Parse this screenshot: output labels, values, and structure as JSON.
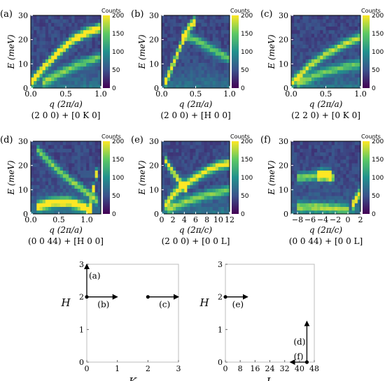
{
  "figure": {
    "colorbar_title": "Counts",
    "colorbar_ticks": [
      "0",
      "50",
      "100",
      "150",
      "200"
    ],
    "colormap": [
      "#440154",
      "#3b528b",
      "#21908d",
      "#5dc863",
      "#fde725"
    ]
  },
  "chart_data": [
    {
      "panel": "(a)",
      "type": "heatmap",
      "ylabel": "E (meV)",
      "xlabel": "q (2π/a)",
      "caption": "(2 0 0) + [0 K 0]",
      "xlim": [
        0,
        1.0
      ],
      "ylim": [
        0,
        30
      ],
      "zlim": [
        0,
        200
      ],
      "xticks": [
        "0.0",
        "0.5",
        "1.0"
      ],
      "yticks": [
        "0",
        "10",
        "20",
        "30"
      ],
      "features": [
        {
          "kind": "dispersion",
          "points": [
            [
              0.0,
              2
            ],
            [
              0.2,
              9
            ],
            [
              0.4,
              15
            ],
            [
              0.6,
              20
            ],
            [
              0.8,
              23
            ],
            [
              1.0,
              25
            ]
          ],
          "intensity": 200
        },
        {
          "kind": "dispersion",
          "points": [
            [
              0.15,
              2
            ],
            [
              0.4,
              6
            ],
            [
              0.7,
              10
            ],
            [
              1.0,
              13
            ]
          ],
          "intensity": 110
        }
      ]
    },
    {
      "panel": "(b)",
      "type": "heatmap",
      "ylabel": "E (meV)",
      "xlabel": "q (2π/a)",
      "caption": "(2 0 0) + [H 0 0]",
      "xlim": [
        0,
        1.0
      ],
      "ylim": [
        0,
        30
      ],
      "zlim": [
        0,
        200
      ],
      "xticks": [
        "0.0",
        "0.5",
        "1.0"
      ],
      "yticks": [
        "0",
        "10",
        "20",
        "30"
      ],
      "features": [
        {
          "kind": "dispersion",
          "points": [
            [
              0.05,
              2
            ],
            [
              0.2,
              12
            ],
            [
              0.3,
              19
            ],
            [
              0.4,
              25
            ],
            [
              0.5,
              28
            ]
          ],
          "intensity": 200
        },
        {
          "kind": "dispersion",
          "points": [
            [
              0.3,
              22
            ],
            [
              0.5,
              20
            ],
            [
              0.75,
              16
            ],
            [
              1.0,
              12
            ]
          ],
          "intensity": 110
        }
      ]
    },
    {
      "panel": "(c)",
      "type": "heatmap",
      "ylabel": "E (meV)",
      "xlabel": "q (2π/a)",
      "caption": "(2 2 0) + [0 K 0]",
      "xlim": [
        0,
        1.0
      ],
      "ylim": [
        0,
        30
      ],
      "zlim": [
        0,
        200
      ],
      "xticks": [
        "0.0",
        "0.5",
        "1.0"
      ],
      "yticks": [
        "0",
        "10",
        "20",
        "30"
      ],
      "features": [
        {
          "kind": "dispersion",
          "points": [
            [
              0.0,
              2
            ],
            [
              0.25,
              9
            ],
            [
              0.5,
              14
            ],
            [
              0.75,
              18
            ],
            [
              1.0,
              21
            ]
          ],
          "intensity": 140
        },
        {
          "kind": "dispersion",
          "points": [
            [
              0.1,
              2
            ],
            [
              0.4,
              6
            ],
            [
              0.8,
              9
            ],
            [
              1.0,
              10
            ]
          ],
          "intensity": 100
        }
      ]
    },
    {
      "panel": "(d)",
      "type": "heatmap",
      "ylabel": "E (meV)",
      "xlabel": "q (2π/a)",
      "caption": "(0 0 44) + [H 0 0]",
      "xlim": [
        0,
        1.25
      ],
      "ylim": [
        0,
        30
      ],
      "zlim": [
        0,
        200
      ],
      "xticks": [
        "0.0",
        "0.5",
        "1.0"
      ],
      "yticks": [
        "0",
        "10",
        "20",
        "30"
      ],
      "features": [
        {
          "kind": "dispersion",
          "points": [
            [
              0.1,
              3
            ],
            [
              0.4,
              5
            ],
            [
              0.7,
              5
            ],
            [
              0.95,
              3
            ],
            [
              1.1,
              1
            ]
          ],
          "intensity": 200
        },
        {
          "kind": "dispersion",
          "points": [
            [
              0.1,
              27
            ],
            [
              0.4,
              20
            ],
            [
              0.7,
              14
            ],
            [
              1.0,
              9
            ],
            [
              1.2,
              5
            ]
          ],
          "intensity": 120
        },
        {
          "kind": "dispersion",
          "points": [
            [
              1.05,
              1
            ],
            [
              1.1,
              8
            ],
            [
              1.15,
              14
            ],
            [
              1.2,
              20
            ]
          ],
          "intensity": 180
        }
      ]
    },
    {
      "panel": "(e)",
      "type": "heatmap",
      "ylabel": "E (meV)",
      "xlabel": "q (2π/c)",
      "caption": "(2 0 0) + [0 0 L]",
      "xlim": [
        0,
        12
      ],
      "ylim": [
        0,
        30
      ],
      "zlim": [
        0,
        200
      ],
      "xticks": [
        "0",
        "2",
        "4",
        "6",
        "8",
        "10",
        "12"
      ],
      "yticks": [
        "0",
        "10",
        "20",
        "30"
      ],
      "features": [
        {
          "kind": "dispersion",
          "points": [
            [
              0.5,
              3
            ],
            [
              2,
              8
            ],
            [
              4,
              12
            ],
            [
              6,
              15
            ],
            [
              8,
              18
            ],
            [
              10,
              20
            ],
            [
              12,
              21
            ]
          ],
          "intensity": 170
        },
        {
          "kind": "dispersion",
          "points": [
            [
              1,
              2
            ],
            [
              4,
              5
            ],
            [
              8,
              8
            ],
            [
              12,
              10
            ]
          ],
          "intensity": 110
        },
        {
          "kind": "dispersion",
          "points": [
            [
              0.5,
              23
            ],
            [
              1.5,
              19
            ],
            [
              3,
              14
            ],
            [
              4.5,
              10
            ]
          ],
          "intensity": 160
        }
      ]
    },
    {
      "panel": "(f)",
      "type": "heatmap",
      "ylabel": "E (meV)",
      "xlabel": "q (2π/c)",
      "caption": "(0 0 44) + [0 0 L]",
      "xlim": [
        -9,
        2
      ],
      "ylim": [
        0,
        30
      ],
      "zlim": [
        0,
        200
      ],
      "xticks": [
        "−8",
        "−6",
        "−4",
        "−2",
        "0",
        "2"
      ],
      "yticks": [
        "0",
        "10",
        "20",
        "30"
      ],
      "features": [
        {
          "kind": "dispersion",
          "points": [
            [
              -5,
              16
            ],
            [
              -3.5,
              16.5
            ],
            [
              -2.5,
              16
            ]
          ],
          "intensity": 200
        },
        {
          "kind": "dispersion",
          "points": [
            [
              -8,
              15
            ],
            [
              -6,
              15.5
            ],
            [
              -4,
              16
            ],
            [
              -2,
              15
            ]
          ],
          "intensity": 120
        },
        {
          "kind": "dispersion",
          "points": [
            [
              0.5,
              2
            ],
            [
              1.2,
              6
            ],
            [
              2,
              9
            ]
          ],
          "intensity": 190
        },
        {
          "kind": "dispersion",
          "points": [
            [
              -8,
              3
            ],
            [
              -5,
              3
            ],
            [
              -2,
              2.5
            ],
            [
              0,
              2
            ]
          ],
          "intensity": 110
        }
      ]
    },
    {
      "panel": "HK-map",
      "type": "scatter",
      "xlabel": "K",
      "ylabel": "H",
      "xlim": [
        0,
        3
      ],
      "ylim": [
        0,
        3
      ],
      "xticks": [
        "0",
        "1",
        "2",
        "3"
      ],
      "yticks": [
        "0",
        "1",
        "2",
        "3"
      ],
      "points": [
        [
          0,
          2
        ],
        [
          2,
          2
        ]
      ],
      "arrows": [
        {
          "label": "(a)",
          "from": [
            0,
            2
          ],
          "to": [
            0,
            3
          ]
        },
        {
          "label": "(b)",
          "from": [
            0,
            2
          ],
          "to": [
            1,
            2
          ]
        },
        {
          "label": "(c)",
          "from": [
            2,
            2
          ],
          "to": [
            3,
            2
          ]
        }
      ]
    },
    {
      "panel": "HL-map",
      "type": "scatter",
      "xlabel": "L",
      "ylabel": "H",
      "xlim": [
        0,
        48
      ],
      "ylim": [
        0,
        3
      ],
      "xticks": [
        "0",
        "8",
        "16",
        "24",
        "32",
        "40",
        "48"
      ],
      "yticks": [
        "0",
        "1",
        "2",
        "3"
      ],
      "points": [
        [
          0,
          2
        ],
        [
          44,
          0
        ]
      ],
      "arrows": [
        {
          "label": "(e)",
          "from": [
            0,
            2
          ],
          "to": [
            12,
            2
          ]
        },
        {
          "label": "(d)",
          "from": [
            44,
            0
          ],
          "to": [
            44,
            1.25
          ]
        },
        {
          "label": "(f)",
          "from": [
            44,
            0
          ],
          "to": [
            35,
            0
          ]
        }
      ]
    }
  ]
}
